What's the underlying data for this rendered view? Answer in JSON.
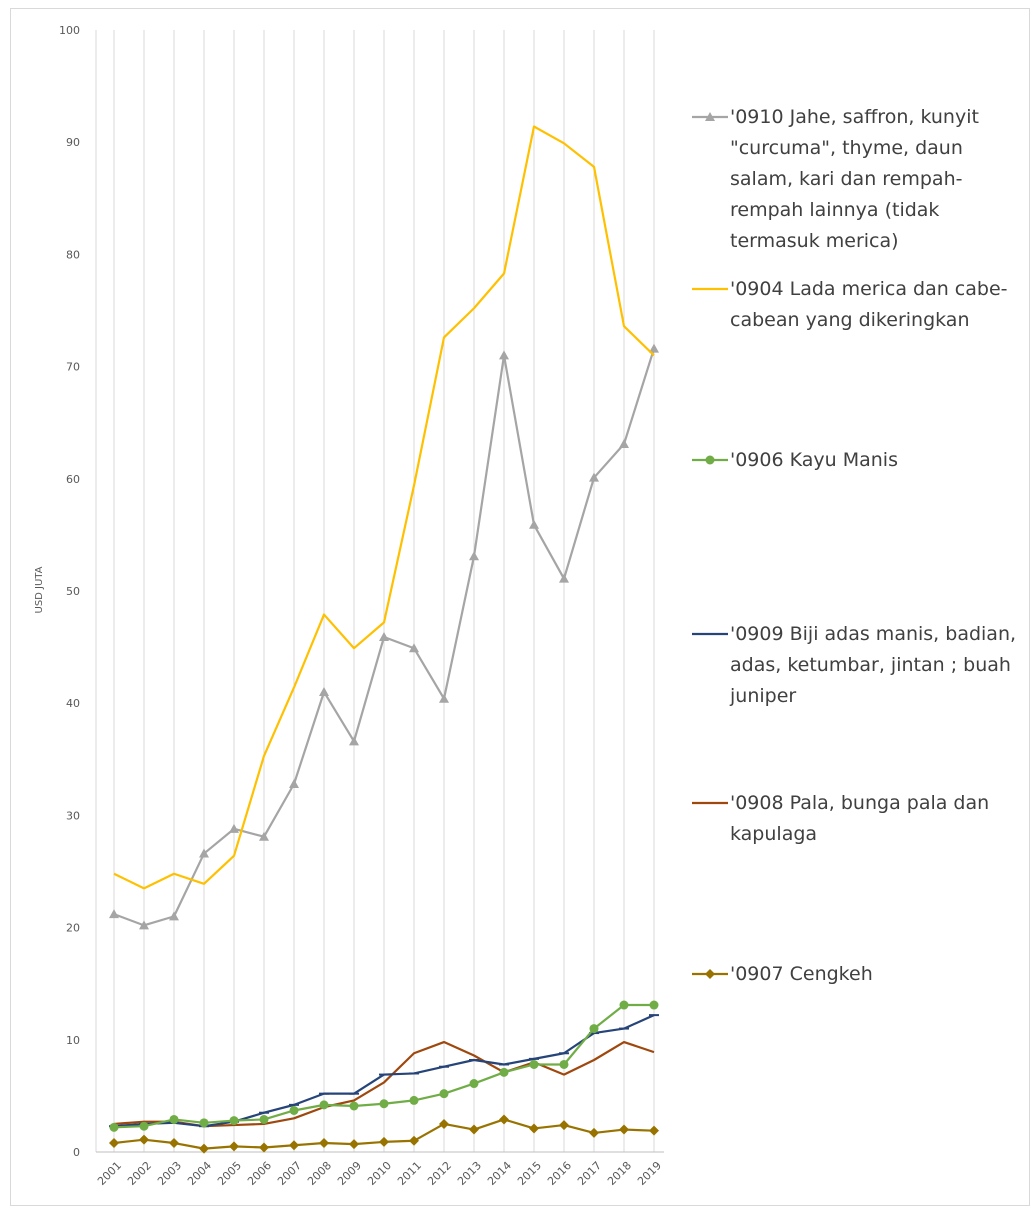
{
  "chart_data": {
    "type": "line",
    "title": "",
    "xlabel": "",
    "ylabel": "USD JUTA",
    "ylim": [
      0,
      100
    ],
    "yticks": [
      0,
      10,
      20,
      30,
      40,
      50,
      60,
      70,
      80,
      90,
      100
    ],
    "grid": "vertical",
    "legend_position": "right",
    "categories": [
      "2001",
      "2002",
      "2003",
      "2004",
      "2005",
      "2006",
      "2007",
      "2008",
      "2009",
      "2010",
      "2011",
      "2012",
      "2013",
      "2014",
      "2015",
      "2016",
      "2017",
      "2018",
      "2019"
    ],
    "series": [
      {
        "name": "'0910 Jahe, saffron, kunyit \"curcuma\", thyme, daun salam, kari dan rempah-rempah lainnya (tidak termasuk merica)",
        "color": "#a5a5a5",
        "marker": "triangle",
        "values": [
          21.2,
          20.2,
          21.0,
          26.6,
          28.8,
          28.1,
          32.8,
          41.0,
          36.6,
          45.9,
          44.9,
          40.4,
          53.1,
          71.0,
          55.9,
          51.1,
          60.1,
          63.1,
          71.6
        ]
      },
      {
        "name": "'0904 Lada merica dan cabe-cabean yang dikeringkan",
        "color": "#ffc000",
        "marker": "none",
        "values": [
          24.8,
          23.5,
          24.8,
          23.9,
          26.4,
          35.3,
          41.4,
          47.9,
          44.9,
          47.2,
          59.4,
          72.6,
          75.2,
          78.3,
          91.4,
          89.9,
          87.8,
          73.6,
          71.0
        ]
      },
      {
        "name": "'0906 Kayu Manis",
        "color": "#70ad47",
        "marker": "circle",
        "values": [
          2.2,
          2.3,
          2.9,
          2.6,
          2.8,
          2.9,
          3.7,
          4.2,
          4.1,
          4.3,
          4.6,
          5.2,
          6.1,
          7.1,
          7.8,
          7.8,
          11.0,
          13.1,
          13.1
        ]
      },
      {
        "name": "'0909 Biji adas manis, badian, adas, ketumbar, jintan ; buah juniper",
        "color": "#264478",
        "marker": "dash",
        "values": [
          2.3,
          2.5,
          2.6,
          2.3,
          2.7,
          3.5,
          4.2,
          5.2,
          5.2,
          6.9,
          7.0,
          7.6,
          8.2,
          7.8,
          8.3,
          8.8,
          10.6,
          11.0,
          12.2
        ]
      },
      {
        "name": "'0908 Pala, bunga pala dan kapulaga",
        "color": "#9e480e",
        "marker": "none",
        "values": [
          2.5,
          2.7,
          2.7,
          2.3,
          2.4,
          2.5,
          3.0,
          4.0,
          4.6,
          6.2,
          8.8,
          9.8,
          8.6,
          7.1,
          8.0,
          6.9,
          8.2,
          9.8,
          8.9
        ]
      },
      {
        "name": "'0907 Cengkeh",
        "color": "#997300",
        "marker": "diamond",
        "values": [
          0.8,
          1.1,
          0.8,
          0.3,
          0.5,
          0.4,
          0.6,
          0.8,
          0.7,
          0.9,
          1.0,
          2.5,
          2.0,
          2.9,
          2.1,
          2.4,
          1.7,
          2.0,
          1.9
        ]
      }
    ]
  },
  "legend": {
    "items": [
      {
        "label": "'0910 Jahe, saffron, kunyit \"curcuma\", thyme, daun salam, kari dan rempah-rempah lainnya (tidak termasuk merica)",
        "color": "#a5a5a5",
        "marker": "triangle"
      },
      {
        "label": "'0904 Lada merica dan cabe-cabean yang dikeringkan",
        "color": "#ffc000",
        "marker": "none"
      },
      {
        "label": "'0906 Kayu Manis",
        "color": "#70ad47",
        "marker": "circle"
      },
      {
        "label": "'0909 Biji adas manis, badian, adas, ketumbar, jintan ; buah juniper",
        "color": "#264478",
        "marker": "dash"
      },
      {
        "label": "'0908 Pala, bunga pala dan kapulaga",
        "color": "#9e480e",
        "marker": "none"
      },
      {
        "label": "'0907 Cengkeh",
        "color": "#997300",
        "marker": "diamond"
      }
    ]
  }
}
